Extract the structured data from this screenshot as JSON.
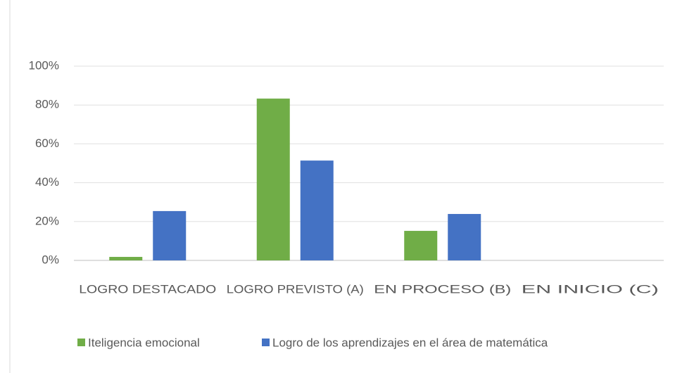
{
  "chart_data": {
    "type": "bar",
    "categories": [
      "LOGRO DESTACADO",
      "LOGRO PREVISTO (A)",
      "EN PROCESO (B)",
      "EN INICIO (C)"
    ],
    "series": [
      {
        "name": "Iteligencia emocional",
        "color": "#70ad47",
        "values": [
          1.8,
          83.3,
          15.2,
          0
        ]
      },
      {
        "name": "Logro de los aprendizajes en el área de matemática",
        "color": "#4472c4",
        "values": [
          25.4,
          51.4,
          23.9,
          0
        ]
      }
    ],
    "ylim": [
      0,
      100
    ],
    "yticks": [
      {
        "value": 0,
        "label": "0%"
      },
      {
        "value": 20,
        "label": "20%"
      },
      {
        "value": 40,
        "label": "40%"
      },
      {
        "value": 60,
        "label": "60%"
      },
      {
        "value": 80,
        "label": "80%"
      },
      {
        "value": 100,
        "label": "100%"
      }
    ],
    "grid": true,
    "legend": "bottom"
  }
}
